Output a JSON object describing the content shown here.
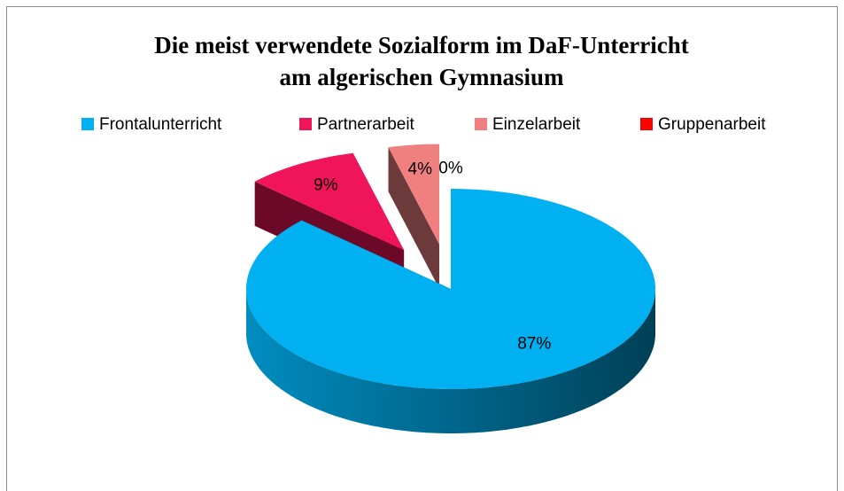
{
  "chart_data": {
    "type": "pie",
    "title": [
      "Die meist verwendete Sozialform im DaF-Unterricht",
      "am algerischen Gymnasium"
    ],
    "categories": [
      "Frontalunterricht",
      "Partnerarbeit",
      "Einzelarbeit",
      "Gruppenarbeit"
    ],
    "values": [
      87,
      9,
      4,
      0
    ],
    "value_labels": [
      "87%",
      "9%",
      "4%",
      "0%"
    ],
    "colors": [
      "#00b0f0",
      "#f0145a",
      "#f08080",
      "#ff0000"
    ],
    "legend": "top"
  }
}
